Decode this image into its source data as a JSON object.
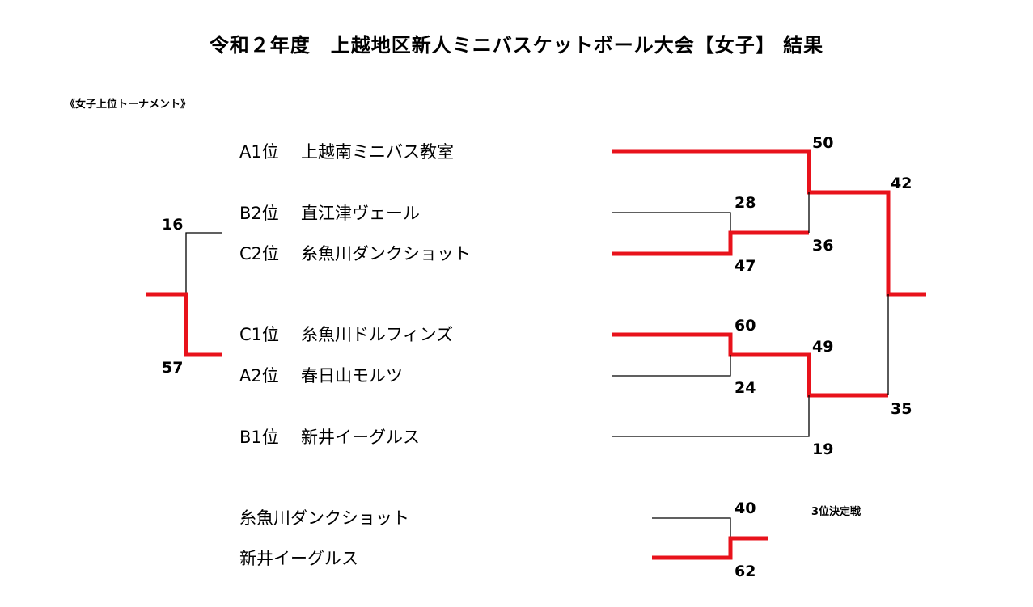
{
  "title": "令和２年度　上越地区新人ミニバスケットボール大会【女子】 結果",
  "subtitle": "《女子上位トーナメント》",
  "teams": [
    {
      "rank": "A1位",
      "name": "上越南ミニバス教室"
    },
    {
      "rank": "B2位",
      "name": "直江津ヴェール"
    },
    {
      "rank": "C2位",
      "name": "糸魚川ダンクショット"
    },
    {
      "rank": "C1位",
      "name": "糸魚川ドルフィンズ"
    },
    {
      "rank": "A2位",
      "name": "春日山モルツ"
    },
    {
      "rank": "B1位",
      "name": "新井イーグルス"
    }
  ],
  "third_place": {
    "label": "3位決定戦",
    "teams": [
      "糸魚川ダンクショット",
      "新井イーグルス"
    ],
    "scores": [
      "40",
      "62"
    ]
  },
  "scores": {
    "left_top": "16",
    "left_bottom": "57",
    "m1_top": "28",
    "m1_bottom": "47",
    "m2_top": "60",
    "m2_bottom": "24",
    "r1_top": "50",
    "r1_bottom": "36",
    "r2_top": "49",
    "r2_bottom": "19",
    "final_top": "42",
    "final_bottom": "35"
  },
  "colors": {
    "winner_line": "#e8121b",
    "loser_line": "#000000"
  }
}
